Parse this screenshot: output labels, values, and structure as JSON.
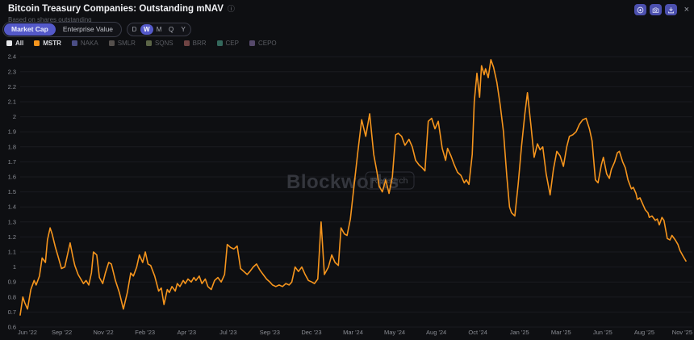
{
  "theme": {
    "background": "#0e0f12",
    "accent": "#5459c9",
    "button": "#4c50ae",
    "grid": "#1a1b20",
    "line": "#f6951d"
  },
  "header": {
    "title": "Bitcoin Treasury Companies: Outstanding mNAV",
    "info_icon": "ⓘ",
    "subtitle": "Based on shares outstanding"
  },
  "actions": {
    "zoom_icon": "plus-circle",
    "camera_icon": "camera",
    "download_icon": "download",
    "close_icon": "×"
  },
  "toolbar": {
    "metric": {
      "options": [
        "Market Cap",
        "Enterprise Value"
      ],
      "selected": "Market Cap"
    },
    "interval": {
      "options": [
        "D",
        "W",
        "M",
        "Q",
        "Y"
      ],
      "selected": "W"
    }
  },
  "legend": {
    "items": [
      {
        "label": "All",
        "color": "#e6e7ea",
        "active": true
      },
      {
        "label": "MSTR",
        "color": "#f6951d",
        "active": true
      },
      {
        "label": "NAKA",
        "color": "#4b4e85",
        "active": false
      },
      {
        "label": "SMLR",
        "color": "#55504d",
        "active": false
      },
      {
        "label": "SQNS",
        "color": "#5c6547",
        "active": false
      },
      {
        "label": "BRR",
        "color": "#6f4343",
        "active": false
      },
      {
        "label": "CEP",
        "color": "#34685c",
        "active": false
      },
      {
        "label": "CEPO",
        "color": "#56496b",
        "active": false
      }
    ]
  },
  "watermark": {
    "brand": "Blockworks",
    "badge": "Research"
  },
  "chart_data": {
    "type": "line",
    "title": "Bitcoin Treasury Companies: Outstanding mNAV",
    "x_start": "Jun 2022",
    "x_end": "Nov 2025",
    "frequency": "weekly",
    "y_min": 0.6,
    "y_max": 2.4,
    "y_tick_step": 0.1,
    "grid": "horizontal",
    "x_tick_labels": [
      "Jun '22",
      "Sep '22",
      "Nov '22",
      "Feb '23",
      "Apr '23",
      "Jul '23",
      "Sep '23",
      "Dec '23",
      "Mar '24",
      "May '24",
      "Aug '24",
      "Oct '24",
      "Jan '25",
      "Mar '25",
      "Jun '25",
      "Aug '25",
      "Nov '25"
    ],
    "series": [
      {
        "name": "MSTR",
        "color": "#f6951d",
        "points": [
          [
            0.0,
            0.68
          ],
          [
            0.004,
            0.8
          ],
          [
            0.007,
            0.76
          ],
          [
            0.011,
            0.72
          ],
          [
            0.016,
            0.85
          ],
          [
            0.021,
            0.91
          ],
          [
            0.024,
            0.88
          ],
          [
            0.029,
            0.94
          ],
          [
            0.033,
            1.06
          ],
          [
            0.038,
            1.03
          ],
          [
            0.041,
            1.18
          ],
          [
            0.045,
            1.26
          ],
          [
            0.048,
            1.22
          ],
          [
            0.053,
            1.13
          ],
          [
            0.057,
            1.07
          ],
          [
            0.062,
            0.99
          ],
          [
            0.067,
            1.0
          ],
          [
            0.072,
            1.1
          ],
          [
            0.075,
            1.16
          ],
          [
            0.079,
            1.07
          ],
          [
            0.082,
            1.01
          ],
          [
            0.087,
            0.95
          ],
          [
            0.091,
            0.92
          ],
          [
            0.095,
            0.89
          ],
          [
            0.099,
            0.91
          ],
          [
            0.103,
            0.88
          ],
          [
            0.107,
            0.96
          ],
          [
            0.11,
            1.1
          ],
          [
            0.115,
            1.08
          ],
          [
            0.119,
            0.93
          ],
          [
            0.124,
            0.89
          ],
          [
            0.128,
            0.96
          ],
          [
            0.133,
            1.03
          ],
          [
            0.137,
            1.02
          ],
          [
            0.143,
            0.91
          ],
          [
            0.149,
            0.83
          ],
          [
            0.155,
            0.72
          ],
          [
            0.161,
            0.83
          ],
          [
            0.166,
            0.96
          ],
          [
            0.17,
            0.94
          ],
          [
            0.175,
            1.0
          ],
          [
            0.179,
            1.08
          ],
          [
            0.184,
            1.03
          ],
          [
            0.188,
            1.1
          ],
          [
            0.192,
            1.02
          ],
          [
            0.196,
            1.01
          ],
          [
            0.202,
            0.94
          ],
          [
            0.208,
            0.84
          ],
          [
            0.212,
            0.86
          ],
          [
            0.216,
            0.75
          ],
          [
            0.221,
            0.85
          ],
          [
            0.224,
            0.83
          ],
          [
            0.228,
            0.87
          ],
          [
            0.233,
            0.84
          ],
          [
            0.236,
            0.89
          ],
          [
            0.24,
            0.87
          ],
          [
            0.245,
            0.91
          ],
          [
            0.248,
            0.89
          ],
          [
            0.252,
            0.92
          ],
          [
            0.257,
            0.9
          ],
          [
            0.261,
            0.93
          ],
          [
            0.264,
            0.91
          ],
          [
            0.269,
            0.94
          ],
          [
            0.273,
            0.89
          ],
          [
            0.278,
            0.92
          ],
          [
            0.282,
            0.87
          ],
          [
            0.287,
            0.85
          ],
          [
            0.292,
            0.91
          ],
          [
            0.297,
            0.93
          ],
          [
            0.302,
            0.9
          ],
          [
            0.307,
            0.95
          ],
          [
            0.311,
            1.15
          ],
          [
            0.316,
            1.13
          ],
          [
            0.321,
            1.12
          ],
          [
            0.326,
            1.14
          ],
          [
            0.331,
            0.99
          ],
          [
            0.336,
            0.97
          ],
          [
            0.341,
            0.95
          ],
          [
            0.345,
            0.97
          ],
          [
            0.35,
            1.0
          ],
          [
            0.355,
            1.02
          ],
          [
            0.36,
            0.98
          ],
          [
            0.365,
            0.95
          ],
          [
            0.37,
            0.92
          ],
          [
            0.375,
            0.9
          ],
          [
            0.379,
            0.88
          ],
          [
            0.384,
            0.87
          ],
          [
            0.389,
            0.88
          ],
          [
            0.394,
            0.87
          ],
          [
            0.399,
            0.89
          ],
          [
            0.404,
            0.88
          ],
          [
            0.408,
            0.9
          ],
          [
            0.413,
            1.0
          ],
          [
            0.418,
            0.97
          ],
          [
            0.423,
            1.0
          ],
          [
            0.428,
            0.95
          ],
          [
            0.433,
            0.91
          ],
          [
            0.438,
            0.9
          ],
          [
            0.442,
            0.89
          ],
          [
            0.447,
            0.92
          ],
          [
            0.452,
            1.3
          ],
          [
            0.457,
            0.95
          ],
          [
            0.463,
            1.0
          ],
          [
            0.468,
            1.08
          ],
          [
            0.473,
            1.03
          ],
          [
            0.478,
            1.01
          ],
          [
            0.482,
            1.26
          ],
          [
            0.487,
            1.22
          ],
          [
            0.491,
            1.21
          ],
          [
            0.496,
            1.32
          ],
          [
            0.501,
            1.52
          ],
          [
            0.507,
            1.76
          ],
          [
            0.513,
            1.98
          ],
          [
            0.519,
            1.87
          ],
          [
            0.525,
            2.02
          ],
          [
            0.531,
            1.75
          ],
          [
            0.536,
            1.63
          ],
          [
            0.539,
            1.54
          ],
          [
            0.544,
            1.5
          ],
          [
            0.549,
            1.58
          ],
          [
            0.554,
            1.49
          ],
          [
            0.559,
            1.6
          ],
          [
            0.564,
            1.88
          ],
          [
            0.568,
            1.89
          ],
          [
            0.573,
            1.87
          ],
          [
            0.578,
            1.81
          ],
          [
            0.584,
            1.85
          ],
          [
            0.589,
            1.8
          ],
          [
            0.594,
            1.71
          ],
          [
            0.599,
            1.68
          ],
          [
            0.604,
            1.66
          ],
          [
            0.608,
            1.64
          ],
          [
            0.613,
            1.97
          ],
          [
            0.618,
            1.99
          ],
          [
            0.623,
            1.92
          ],
          [
            0.628,
            1.97
          ],
          [
            0.634,
            1.79
          ],
          [
            0.639,
            1.71
          ],
          [
            0.642,
            1.79
          ],
          [
            0.647,
            1.74
          ],
          [
            0.652,
            1.68
          ],
          [
            0.657,
            1.63
          ],
          [
            0.662,
            1.61
          ],
          [
            0.667,
            1.56
          ],
          [
            0.67,
            1.58
          ],
          [
            0.674,
            1.55
          ],
          [
            0.679,
            1.75
          ],
          [
            0.682,
            2.1
          ],
          [
            0.686,
            2.29
          ],
          [
            0.69,
            2.13
          ],
          [
            0.693,
            2.34
          ],
          [
            0.697,
            2.28
          ],
          [
            0.699,
            2.32
          ],
          [
            0.703,
            2.26
          ],
          [
            0.707,
            2.38
          ],
          [
            0.711,
            2.33
          ],
          [
            0.716,
            2.23
          ],
          [
            0.721,
            2.08
          ],
          [
            0.726,
            1.9
          ],
          [
            0.731,
            1.6
          ],
          [
            0.735,
            1.4
          ],
          [
            0.738,
            1.36
          ],
          [
            0.743,
            1.34
          ],
          [
            0.748,
            1.55
          ],
          [
            0.753,
            1.8
          ],
          [
            0.758,
            2.02
          ],
          [
            0.762,
            2.16
          ],
          [
            0.767,
            1.95
          ],
          [
            0.772,
            1.73
          ],
          [
            0.777,
            1.82
          ],
          [
            0.781,
            1.78
          ],
          [
            0.785,
            1.8
          ],
          [
            0.79,
            1.62
          ],
          [
            0.796,
            1.48
          ],
          [
            0.801,
            1.65
          ],
          [
            0.806,
            1.77
          ],
          [
            0.811,
            1.74
          ],
          [
            0.816,
            1.67
          ],
          [
            0.821,
            1.8
          ],
          [
            0.825,
            1.87
          ],
          [
            0.83,
            1.88
          ],
          [
            0.835,
            1.9
          ],
          [
            0.84,
            1.95
          ],
          [
            0.845,
            1.98
          ],
          [
            0.85,
            1.99
          ],
          [
            0.855,
            1.92
          ],
          [
            0.859,
            1.84
          ],
          [
            0.864,
            1.58
          ],
          [
            0.868,
            1.56
          ],
          [
            0.873,
            1.68
          ],
          [
            0.876,
            1.73
          ],
          [
            0.881,
            1.62
          ],
          [
            0.885,
            1.59
          ],
          [
            0.888,
            1.65
          ],
          [
            0.893,
            1.7
          ],
          [
            0.897,
            1.76
          ],
          [
            0.9,
            1.77
          ],
          [
            0.905,
            1.7
          ],
          [
            0.909,
            1.66
          ],
          [
            0.913,
            1.58
          ],
          [
            0.918,
            1.52
          ],
          [
            0.921,
            1.53
          ],
          [
            0.925,
            1.49
          ],
          [
            0.927,
            1.45
          ],
          [
            0.931,
            1.46
          ],
          [
            0.936,
            1.41
          ],
          [
            0.939,
            1.38
          ],
          [
            0.943,
            1.36
          ],
          [
            0.945,
            1.33
          ],
          [
            0.949,
            1.34
          ],
          [
            0.954,
            1.31
          ],
          [
            0.957,
            1.32
          ],
          [
            0.96,
            1.28
          ],
          [
            0.964,
            1.33
          ],
          [
            0.967,
            1.31
          ],
          [
            0.972,
            1.19
          ],
          [
            0.976,
            1.18
          ],
          [
            0.979,
            1.21
          ],
          [
            0.984,
            1.18
          ],
          [
            0.988,
            1.15
          ],
          [
            0.991,
            1.11
          ],
          [
            0.996,
            1.07
          ],
          [
            1.0,
            1.04
          ]
        ]
      }
    ]
  }
}
